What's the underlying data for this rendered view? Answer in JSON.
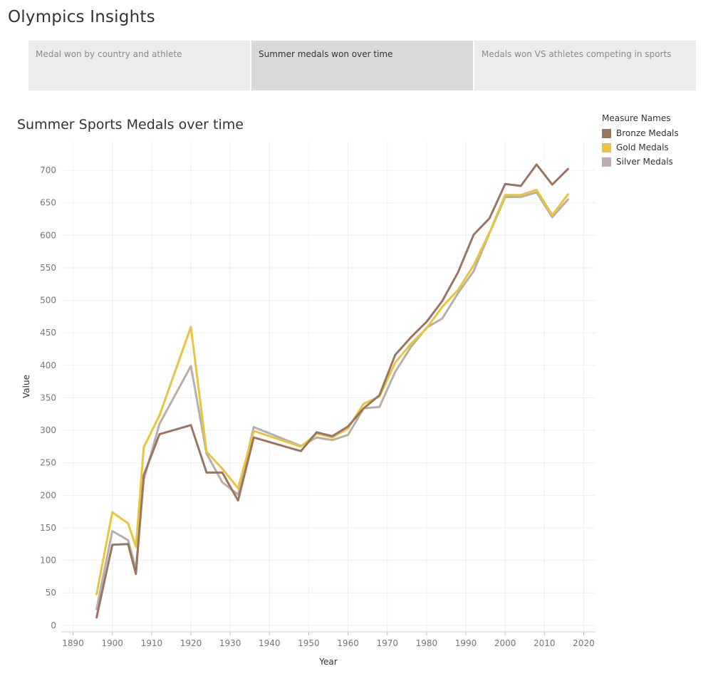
{
  "app": {
    "title": "Olympics Insights"
  },
  "tabs": [
    {
      "label": "Medal won by country and athlete",
      "active": false
    },
    {
      "label": "Summer medals won over time",
      "active": true
    },
    {
      "label": "Medals won VS athletes competing in sports",
      "active": false
    }
  ],
  "legend": {
    "title": "Measure Names",
    "items": [
      {
        "label": "Bronze Medals",
        "color": "#9c7560"
      },
      {
        "label": "Gold Medals",
        "color": "#e8c53e"
      },
      {
        "label": "Silver Medals",
        "color": "#b9aea9"
      }
    ]
  },
  "chart_data": {
    "type": "line",
    "title": "Summer Sports Medals over time",
    "xlabel": "Year",
    "ylabel": "Value",
    "xlim": [
      1887,
      2023
    ],
    "ylim": [
      -10,
      745
    ],
    "xticks": [
      1890,
      1900,
      1910,
      1920,
      1930,
      1940,
      1950,
      1960,
      1970,
      1980,
      1990,
      2000,
      2010,
      2020
    ],
    "yticks": [
      0,
      50,
      100,
      150,
      200,
      250,
      300,
      350,
      400,
      450,
      500,
      550,
      600,
      650,
      700
    ],
    "grid": true,
    "legend_position": "top-right",
    "x": [
      1896,
      1900,
      1904,
      1906,
      1908,
      1912,
      1920,
      1924,
      1928,
      1932,
      1936,
      1948,
      1952,
      1956,
      1960,
      1964,
      1968,
      1972,
      1976,
      1980,
      1984,
      1988,
      1992,
      1996,
      2000,
      2004,
      2008,
      2012,
      2016
    ],
    "series": [
      {
        "name": "Bronze Medals",
        "color": "#9c7560",
        "values": [
          12,
          124,
          125,
          79,
          231,
          294,
          308,
          235,
          235,
          192,
          289,
          268,
          297,
          291,
          306,
          334,
          354,
          416,
          443,
          467,
          499,
          543,
          601,
          626,
          679,
          676,
          709,
          678,
          702
        ]
      },
      {
        "name": "Gold Medals",
        "color": "#e8c53e",
        "values": [
          48,
          174,
          157,
          121,
          274,
          323,
          459,
          267,
          241,
          211,
          299,
          275,
          295,
          289,
          303,
          341,
          352,
          404,
          433,
          457,
          490,
          516,
          554,
          604,
          662,
          662,
          670,
          631,
          663
        ]
      },
      {
        "name": "Silver Medals",
        "color": "#b9aea9",
        "values": [
          25,
          145,
          131,
          87,
          224,
          310,
          399,
          264,
          220,
          201,
          305,
          276,
          289,
          285,
          293,
          334,
          336,
          390,
          428,
          458,
          472,
          511,
          545,
          603,
          659,
          659,
          666,
          628,
          655
        ]
      }
    ]
  }
}
